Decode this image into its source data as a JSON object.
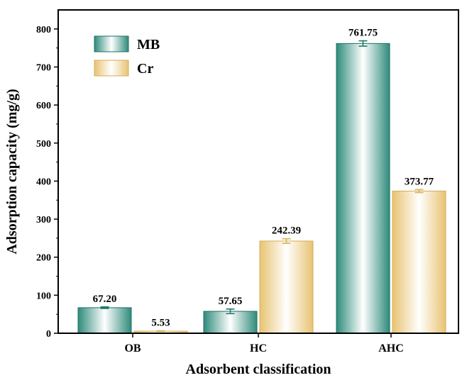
{
  "chart_data": {
    "type": "bar",
    "categories": [
      "OB",
      "HC",
      "AHC"
    ],
    "series": [
      {
        "name": "MB",
        "values": [
          67.2,
          57.65,
          761.75
        ],
        "errors": [
          2,
          6,
          7
        ],
        "labels": [
          "67.20",
          "57.65",
          "761.75"
        ],
        "color": "#2e8b7b"
      },
      {
        "name": "Cr",
        "values": [
          5.53,
          242.39,
          373.77
        ],
        "errors": [
          1,
          6,
          4
        ],
        "labels": [
          "5.53",
          "242.39",
          "373.77"
        ],
        "color": "#e8c372"
      }
    ],
    "xlabel": "Adsorbent classification",
    "ylabel": "Adsorption capacity (mg/g)",
    "ylim": [
      0,
      850
    ],
    "yticks": [
      0,
      100,
      200,
      300,
      400,
      500,
      600,
      700,
      800
    ],
    "legend_position": "top-left",
    "grid": false
  }
}
